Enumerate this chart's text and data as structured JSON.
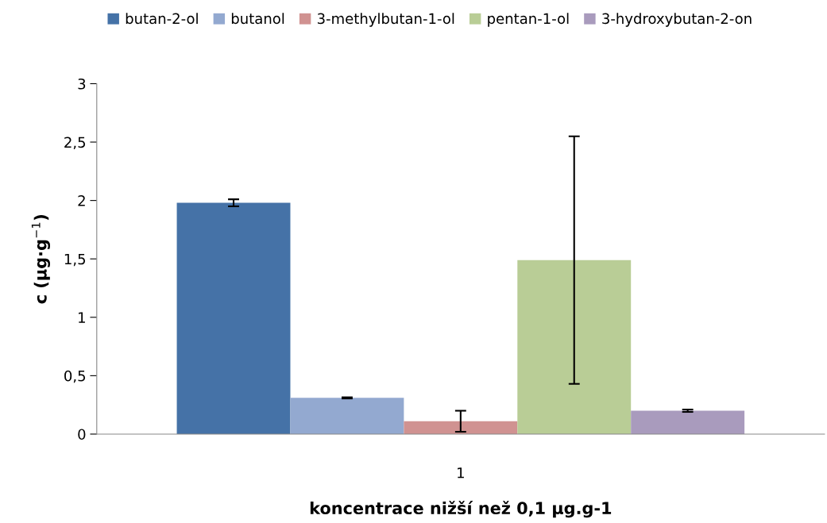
{
  "chart_data": {
    "type": "bar",
    "xlabel": "koncentrace nižší než 0,1 µg.g-1",
    "ylabel": "c (µg·g$^{−1}$)",
    "categories": [
      "1"
    ],
    "series": [
      {
        "name": "butan-2-ol",
        "color": "#4572a7",
        "values": [
          1.98
        ],
        "errors": [
          0.03
        ]
      },
      {
        "name": "butanol",
        "color": "#93a9d0",
        "values": [
          0.31
        ],
        "errors": [
          0.005
        ]
      },
      {
        "name": "3-methylbutan-1-ol",
        "color": "#d09291",
        "values": [
          0.11
        ],
        "errors": [
          0.09
        ]
      },
      {
        "name": "pentan-1-ol",
        "color": "#b9cd96",
        "values": [
          1.49
        ],
        "errors": [
          1.06
        ]
      },
      {
        "name": "3-hydroxybutan-2-on",
        "color": "#a99bbd",
        "values": [
          0.2
        ],
        "errors": [
          0.01
        ]
      }
    ],
    "ylim": [
      0,
      3
    ],
    "yticks": [
      0,
      {
        "value": 0.5,
        "label": "0,5"
      },
      1,
      {
        "value": 1.5,
        "label": "1,5"
      },
      2,
      {
        "value": 2.5,
        "label": "2,5"
      },
      3
    ],
    "grid": false,
    "legend": "top"
  }
}
